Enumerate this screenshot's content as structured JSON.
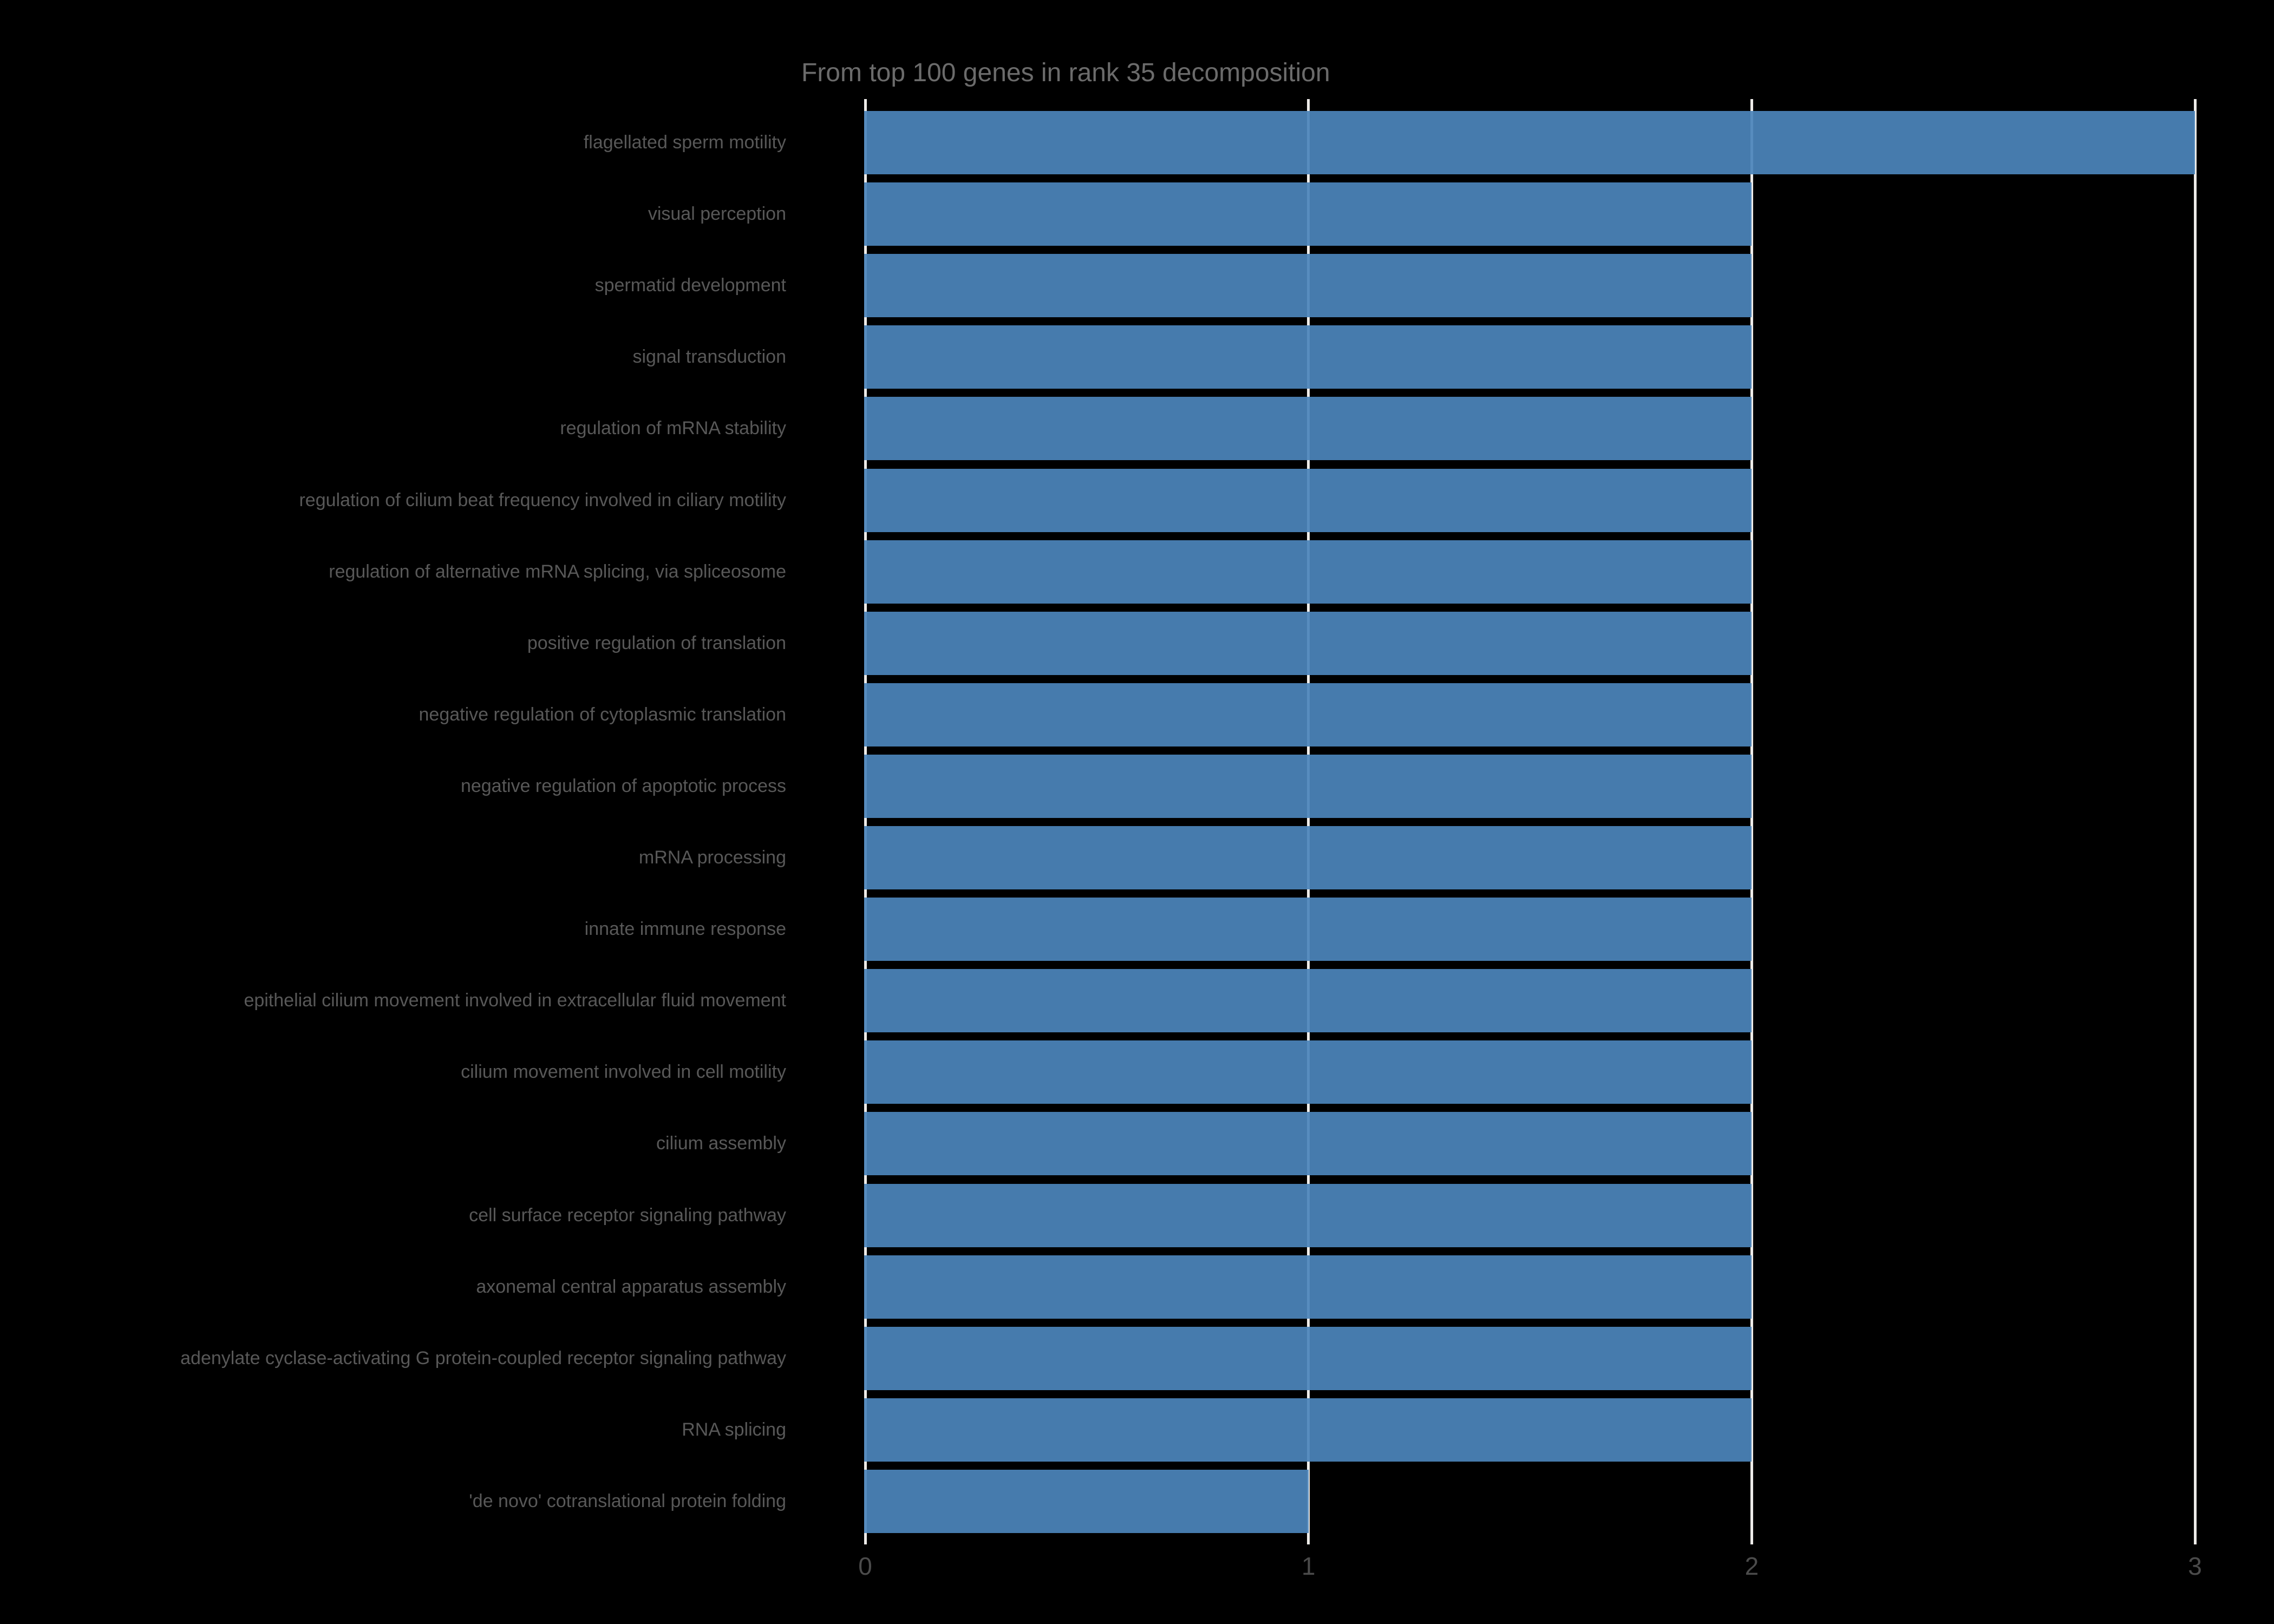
{
  "title": "From top 100 genes in rank 35 decomposition",
  "chart_data": {
    "type": "bar",
    "orientation": "horizontal",
    "title": "From top 100 genes in rank 35 decomposition",
    "categories": [
      "flagellated sperm motility",
      "visual perception",
      "spermatid development",
      "signal transduction",
      "regulation of mRNA stability",
      "regulation of cilium beat frequency involved in ciliary motility",
      "regulation of alternative mRNA splicing, via spliceosome",
      "positive regulation of translation",
      "negative regulation of cytoplasmic translation",
      "negative regulation of apoptotic process",
      "mRNA processing",
      "innate immune response",
      "epithelial cilium movement involved in extracellular fluid movement",
      "cilium movement involved in cell motility",
      "cilium assembly",
      "cell surface receptor signaling pathway",
      "axonemal central apparatus assembly",
      "adenylate cyclase-activating G protein-coupled receptor signaling pathway",
      "RNA splicing",
      "'de novo' cotranslational protein folding"
    ],
    "values": [
      3,
      2,
      2,
      2,
      2,
      2,
      2,
      2,
      2,
      2,
      2,
      2,
      2,
      2,
      2,
      2,
      2,
      2,
      2,
      1
    ],
    "xlabel": "",
    "ylabel": "",
    "xticks": [
      "0",
      "1",
      "2",
      "3"
    ],
    "xlim": [
      0,
      3
    ],
    "grid": true,
    "legend_position": "none",
    "colors": {
      "background": "#000000",
      "bar": "#4b84ba",
      "gridline": "#edebe8",
      "title_text": "#6b6b6b",
      "category_text": "#585858",
      "tick_text": "#4b4b4b"
    }
  }
}
